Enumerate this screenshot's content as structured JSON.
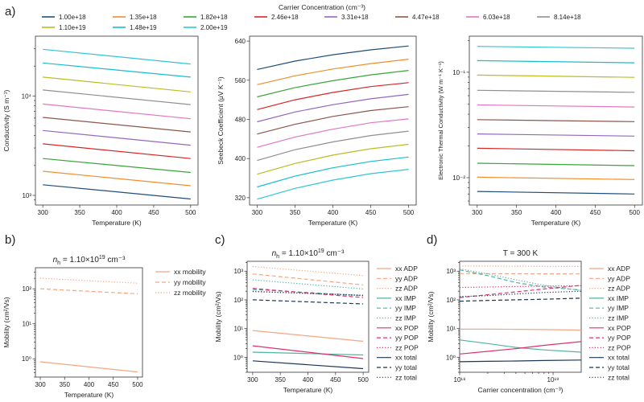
{
  "figure": {
    "panel_labels": [
      "a)",
      "b)",
      "c)",
      "d)"
    ],
    "cc_legend_title": "Carrier Concentration (cm⁻³)"
  },
  "chart_data": [
    {
      "id": "a1",
      "type": "line",
      "yscale": "log",
      "title": "",
      "xlabel": "Temperature (K)",
      "ylabel": "Conductivity (S m⁻¹)",
      "xlim": [
        290,
        510
      ],
      "ylim": [
        800,
        40000
      ],
      "xticks": [
        300,
        350,
        400,
        450,
        500
      ],
      "xticklabels": [
        "300",
        "350",
        "400",
        "450",
        "500"
      ],
      "yticks": [
        1000,
        10000
      ],
      "yticklabels": [
        "10³",
        "10⁴"
      ],
      "x": [
        300,
        500
      ],
      "series": [
        {
          "name": "1.00e+18",
          "color": "#1f4e79",
          "values": [
            1280,
            920
          ]
        },
        {
          "name": "1.35e+18",
          "color": "#f28e2b",
          "values": [
            1750,
            1250
          ]
        },
        {
          "name": "1.82e+18",
          "color": "#3aa53a",
          "values": [
            2350,
            1700
          ]
        },
        {
          "name": "2.46e+18",
          "color": "#d62728",
          "values": [
            3300,
            2350
          ]
        },
        {
          "name": "3.31e+18",
          "color": "#9467bd",
          "values": [
            4500,
            3200
          ]
        },
        {
          "name": "4.47e+18",
          "color": "#8c564b",
          "values": [
            6100,
            4350
          ]
        },
        {
          "name": "6.03e+18",
          "color": "#e377c2",
          "values": [
            8300,
            5900
          ]
        },
        {
          "name": "8.14e+18",
          "color": "#8f8f8f",
          "values": [
            11500,
            8200
          ]
        },
        {
          "name": "1.10e+19",
          "color": "#bcbd22",
          "values": [
            15500,
            11000
          ]
        },
        {
          "name": "1.48e+19",
          "color": "#17becf",
          "values": [
            21500,
            15500
          ]
        },
        {
          "name": "2.00e+19",
          "color": "#2ec7d3",
          "values": [
            29500,
            21000
          ]
        }
      ]
    },
    {
      "id": "a2",
      "type": "line",
      "yscale": "linear",
      "title": "",
      "xlabel": "Temperature (K)",
      "ylabel": "Seebeck Coefficient (μV K⁻¹)",
      "xlim": [
        290,
        510
      ],
      "ylim": [
        305,
        650
      ],
      "xticks": [
        300,
        350,
        400,
        450,
        500
      ],
      "xticklabels": [
        "300",
        "350",
        "400",
        "450",
        "500"
      ],
      "yticks": [
        320,
        400,
        480,
        560,
        640
      ],
      "yticklabels": [
        "320",
        "400",
        "480",
        "560",
        "640"
      ],
      "x": [
        300,
        350,
        400,
        450,
        500
      ],
      "series": [
        {
          "name": "1.00e+18",
          "color": "#1f4e79",
          "values": [
            582,
            599,
            612,
            622,
            630
          ]
        },
        {
          "name": "1.35e+18",
          "color": "#f28e2b",
          "values": [
            551,
            569,
            583,
            594,
            603
          ]
        },
        {
          "name": "1.82e+18",
          "color": "#3aa53a",
          "values": [
            526,
            545,
            559,
            571,
            580
          ]
        },
        {
          "name": "2.46e+18",
          "color": "#d62728",
          "values": [
            500,
            520,
            535,
            547,
            555
          ]
        },
        {
          "name": "3.31e+18",
          "color": "#9467bd",
          "values": [
            475,
            495,
            510,
            522,
            531
          ]
        },
        {
          "name": "4.47e+18",
          "color": "#8c564b",
          "values": [
            450,
            470,
            486,
            498,
            506
          ]
        },
        {
          "name": "6.03e+18",
          "color": "#e377c2",
          "values": [
            423,
            444,
            460,
            473,
            481
          ]
        },
        {
          "name": "8.14e+18",
          "color": "#8f8f8f",
          "values": [
            396,
            418,
            434,
            447,
            456
          ]
        },
        {
          "name": "1.10e+19",
          "color": "#bcbd22",
          "values": [
            368,
            390,
            407,
            420,
            429
          ]
        },
        {
          "name": "1.48e+19",
          "color": "#17becf",
          "values": [
            342,
            364,
            381,
            394,
            403
          ]
        },
        {
          "name": "2.00e+19",
          "color": "#2ec7d3",
          "values": [
            317,
            339,
            356,
            369,
            378
          ]
        }
      ]
    },
    {
      "id": "a3",
      "type": "line",
      "yscale": "log",
      "title": "",
      "xlabel": "Temperature (K)",
      "ylabel": "Electronic Thermal Conductivity (W m⁻¹ K⁻¹)",
      "xlim": [
        290,
        510
      ],
      "ylim": [
        0.0055,
        0.22
      ],
      "xticks": [
        300,
        350,
        400,
        450,
        500
      ],
      "xticklabels": [
        "300",
        "350",
        "400",
        "450",
        "500"
      ],
      "yticks": [
        0.01,
        0.1
      ],
      "yticklabels": [
        "10⁻²",
        "10⁻¹"
      ],
      "x": [
        300,
        500
      ],
      "series": [
        {
          "name": "1.00e+18",
          "color": "#1f4e79",
          "values": [
            0.0074,
            0.007
          ]
        },
        {
          "name": "1.35e+18",
          "color": "#f28e2b",
          "values": [
            0.0101,
            0.0096
          ]
        },
        {
          "name": "1.82e+18",
          "color": "#3aa53a",
          "values": [
            0.0137,
            0.013
          ]
        },
        {
          "name": "2.46e+18",
          "color": "#d62728",
          "values": [
            0.019,
            0.018
          ]
        },
        {
          "name": "3.31e+18",
          "color": "#9467bd",
          "values": [
            0.026,
            0.0248
          ]
        },
        {
          "name": "4.47e+18",
          "color": "#8c564b",
          "values": [
            0.0355,
            0.034
          ]
        },
        {
          "name": "6.03e+18",
          "color": "#e377c2",
          "values": [
            0.049,
            0.0468
          ]
        },
        {
          "name": "8.14e+18",
          "color": "#8f8f8f",
          "values": [
            0.0675,
            0.0645
          ]
        },
        {
          "name": "1.10e+19",
          "color": "#bcbd22",
          "values": [
            0.094,
            0.0895
          ]
        },
        {
          "name": "1.48e+19",
          "color": "#17becf",
          "values": [
            0.129,
            0.123
          ]
        },
        {
          "name": "2.00e+19",
          "color": "#2ec7d3",
          "values": [
            0.176,
            0.169
          ]
        }
      ]
    },
    {
      "id": "b",
      "type": "line",
      "yscale": "log",
      "title": "n_h = 1.10×10¹⁹ cm⁻³",
      "title_parts": {
        "pre": "n",
        "sub": "h",
        "mid": " = 1.10×10",
        "sup": "19",
        "post": " cm⁻³"
      },
      "xlabel": "Temperature (K)",
      "ylabel": "Mobility (cm²/Vs)",
      "xlim": [
        290,
        510
      ],
      "ylim": [
        0.3,
        400
      ],
      "xticks": [
        300,
        350,
        400,
        450,
        500
      ],
      "xticklabels": [
        "300",
        "350",
        "400",
        "450",
        "500"
      ],
      "yticks": [
        1,
        10,
        100
      ],
      "yticklabels": [
        "10⁰",
        "10¹",
        "10²"
      ],
      "x": [
        300,
        500
      ],
      "legend_position": "top-right",
      "series": [
        {
          "name": "xx mobility",
          "color": "#f4a582",
          "dash": "solid",
          "values": [
            0.82,
            0.42
          ]
        },
        {
          "name": "yy mobility",
          "color": "#f4a582",
          "dash": "dashed",
          "values": [
            100,
            72
          ]
        },
        {
          "name": "zz mobility",
          "color": "#f4a582",
          "dash": "dotted",
          "values": [
            200,
            145
          ]
        }
      ]
    },
    {
      "id": "c",
      "type": "line",
      "yscale": "log",
      "title": "n_h = 1.10×10¹⁹ cm⁻³",
      "title_parts": {
        "pre": "n",
        "sub": "h",
        "mid": " = 1.10×10",
        "sup": "19",
        "post": " cm⁻³"
      },
      "xlabel": "Temperature (K)",
      "ylabel": "Mobility (cm²/Vs)",
      "xlim": [
        290,
        510
      ],
      "ylim": [
        0.3,
        2200
      ],
      "xticks": [
        300,
        350,
        400,
        450,
        500
      ],
      "xticklabels": [
        "300",
        "350",
        "400",
        "450",
        "500"
      ],
      "yticks": [
        1,
        10,
        100,
        1000
      ],
      "yticklabels": [
        "10⁰",
        "10¹",
        "10²",
        "10³"
      ],
      "x": [
        300,
        500
      ],
      "legend_position": "right",
      "series": [
        {
          "name": "xx ADP",
          "color": "#f4a582",
          "dash": "solid",
          "values": [
            8.5,
            3.6
          ]
        },
        {
          "name": "yy ADP",
          "color": "#f4a582",
          "dash": "dashed",
          "values": [
            800,
            330
          ]
        },
        {
          "name": "zz ADP",
          "color": "#f4a582",
          "dash": "dotted",
          "values": [
            1450,
            700
          ]
        },
        {
          "name": "xx IMP",
          "color": "#4eb3a3",
          "dash": "solid",
          "values": [
            1.5,
            1.2
          ]
        },
        {
          "name": "yy IMP",
          "color": "#4eb3a3",
          "dash": "dashed",
          "values": [
            230,
            140
          ]
        },
        {
          "name": "zz IMP",
          "color": "#4eb3a3",
          "dash": "dotted",
          "values": [
            500,
            240
          ]
        },
        {
          "name": "xx POP",
          "color": "#e0306f",
          "dash": "solid",
          "values": [
            2.5,
            0.9
          ]
        },
        {
          "name": "yy POP",
          "color": "#e0306f",
          "dash": "dashed",
          "values": [
            250,
            120
          ]
        },
        {
          "name": "zz POP",
          "color": "#e0306f",
          "dash": "dotted",
          "values": [
            200,
            140
          ]
        },
        {
          "name": "xx total",
          "color": "#1d3557",
          "dash": "solid",
          "values": [
            0.75,
            0.4
          ]
        },
        {
          "name": "yy total",
          "color": "#1d3557",
          "dash": "dashed",
          "values": [
            100,
            72
          ]
        },
        {
          "name": "zz total",
          "color": "#1d3557",
          "dash": "dotted",
          "values": [
            195,
            145
          ]
        }
      ]
    },
    {
      "id": "d",
      "type": "line",
      "yscale": "log",
      "xscale": "log",
      "title": "T = 300 K",
      "xlabel": "Carrier concentration (cm⁻³)",
      "ylabel": "Mobility (cm²/Vs)",
      "xlim": [
        1e+18,
        2e+19
      ],
      "ylim": [
        0.3,
        2200
      ],
      "xticks": [
        1e+18,
        1e+19
      ],
      "xticklabels": [
        "10¹⁸",
        "10¹⁹"
      ],
      "yticks": [
        1,
        10,
        100,
        1000
      ],
      "yticklabels": [
        "10⁰",
        "10¹",
        "10²",
        "10³"
      ],
      "x": [
        1e+18,
        2e+18,
        4e+18,
        8e+18,
        2e+19
      ],
      "legend_position": "right",
      "series": [
        {
          "name": "xx ADP",
          "color": "#f4a582",
          "dash": "solid",
          "values": [
            9.5,
            9.5,
            9.4,
            9.2,
            8.8
          ]
        },
        {
          "name": "yy ADP",
          "color": "#f4a582",
          "dash": "dashed",
          "values": [
            820,
            815,
            810,
            805,
            800
          ]
        },
        {
          "name": "zz ADP",
          "color": "#f4a582",
          "dash": "dotted",
          "values": [
            1500,
            1490,
            1480,
            1470,
            1460
          ]
        },
        {
          "name": "xx IMP",
          "color": "#4eb3a3",
          "dash": "solid",
          "values": [
            4.0,
            3.0,
            2.2,
            1.8,
            1.5
          ]
        },
        {
          "name": "yy IMP",
          "color": "#4eb3a3",
          "dash": "dashed",
          "values": [
            1100,
            700,
            400,
            280,
            220
          ]
        },
        {
          "name": "zz IMP",
          "color": "#4eb3a3",
          "dash": "dotted",
          "values": [
            1200,
            800,
            500,
            320,
            210
          ]
        },
        {
          "name": "xx POP",
          "color": "#e0306f",
          "dash": "solid",
          "values": [
            1.3,
            1.6,
            2.0,
            2.6,
            3.5
          ]
        },
        {
          "name": "yy POP",
          "color": "#e0306f",
          "dash": "dashed",
          "values": [
            120,
            150,
            190,
            240,
            320
          ]
        },
        {
          "name": "zz POP",
          "color": "#e0306f",
          "dash": "dotted",
          "values": [
            270,
            280,
            290,
            300,
            310
          ]
        },
        {
          "name": "xx total",
          "color": "#1d3557",
          "dash": "solid",
          "values": [
            0.7,
            0.72,
            0.74,
            0.77,
            0.8
          ]
        },
        {
          "name": "yy total",
          "color": "#1d3557",
          "dash": "dashed",
          "values": [
            90,
            95,
            100,
            105,
            115
          ]
        },
        {
          "name": "zz total",
          "color": "#1d3557",
          "dash": "dotted",
          "values": [
            130,
            140,
            160,
            180,
            200
          ]
        }
      ]
    }
  ]
}
